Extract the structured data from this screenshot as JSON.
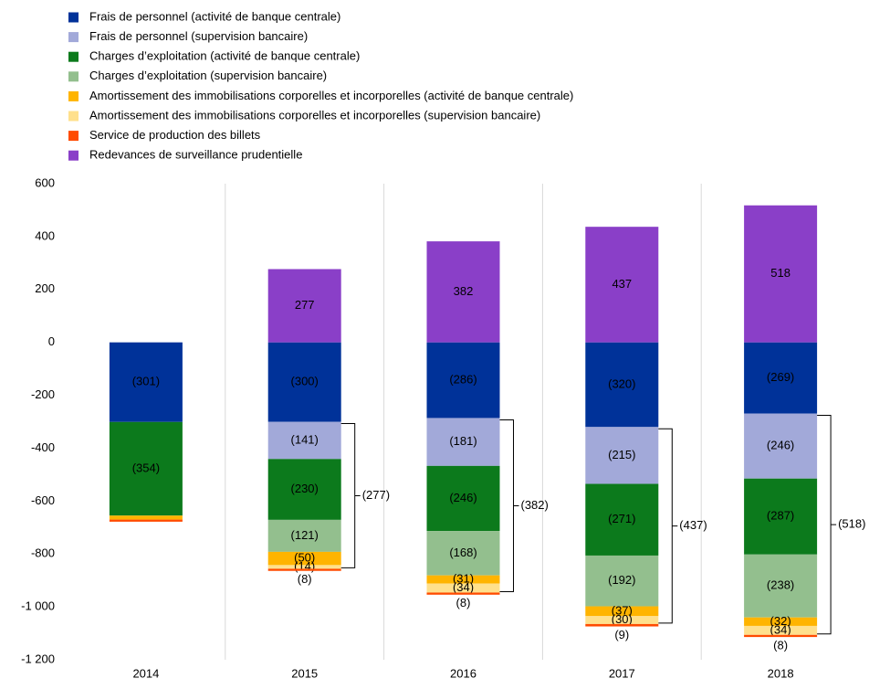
{
  "chart_data": {
    "type": "stacked_bar",
    "categories": [
      "2014",
      "2015",
      "2016",
      "2017",
      "2018"
    ],
    "series": [
      {
        "name": "Frais de personnel (activité de banque centrale)",
        "color": "#003299",
        "values": [
          -301,
          -300,
          -286,
          -320,
          -269
        ],
        "value_labels": [
          "(301)",
          "(300)",
          "(286)",
          "(320)",
          "(269)"
        ]
      },
      {
        "name": "Frais de personnel (supervision bancaire)",
        "color": "#a2a9d9",
        "values": [
          null,
          -141,
          -181,
          -215,
          -246
        ],
        "value_labels": [
          null,
          "(141)",
          "(181)",
          "(215)",
          "(246)"
        ]
      },
      {
        "name": "Charges d’exploitation (activité de banque centrale)",
        "color": "#0c7a1c",
        "values": [
          -354,
          -230,
          -246,
          -271,
          -287
        ],
        "value_labels": [
          "(354)",
          "(230)",
          "(246)",
          "(271)",
          "(287)"
        ]
      },
      {
        "name": "Charges d’exploitation (supervision bancaire)",
        "color": "#93bf8e",
        "values": [
          null,
          -121,
          -168,
          -192,
          -238
        ],
        "value_labels": [
          null,
          "(121)",
          "(168)",
          "(192)",
          "(238)"
        ]
      },
      {
        "name": "Amortissement des immobilisations corporelles et incorporelles (activité de banque centrale)",
        "color": "#ffb400",
        "values": [
          -15,
          -50,
          -31,
          -37,
          -32
        ],
        "value_labels": [
          null,
          "(50)",
          "(31)",
          "(37)",
          "(32)"
        ]
      },
      {
        "name": "Amortissement des immobilisations corporelles et incorporelles (supervision bancaire)",
        "color": "#ffe08c",
        "values": [
          null,
          -14,
          -34,
          -30,
          -34
        ],
        "value_labels": [
          null,
          "(14)",
          "(34)",
          "(30)",
          "(34)"
        ]
      },
      {
        "name": "Service de production des billets",
        "color": "#ff4b00",
        "values": [
          -8,
          -8,
          -8,
          -9,
          -8
        ],
        "value_labels": [
          null,
          "(8)",
          "(8)",
          "(9)",
          "(8)"
        ]
      },
      {
        "name": "Redevances de surveillance prudentielle",
        "color": "#8a3fc8",
        "values": [
          null,
          277,
          382,
          437,
          518
        ],
        "value_labels": [
          null,
          "277",
          "382",
          "437",
          "518"
        ]
      }
    ],
    "annotations": [
      {
        "category": "2015",
        "text": "(277)"
      },
      {
        "category": "2016",
        "text": "(382)"
      },
      {
        "category": "2017",
        "text": "(437)"
      },
      {
        "category": "2018",
        "text": "(518)"
      }
    ],
    "ylim": [
      -1200,
      600
    ],
    "yticks": [
      {
        "value": -1200,
        "label": "-1 200"
      },
      {
        "value": -1000,
        "label": "-1 000"
      },
      -800,
      -600,
      -400,
      -200,
      0,
      200,
      400,
      600
    ],
    "legend": "top-left"
  }
}
